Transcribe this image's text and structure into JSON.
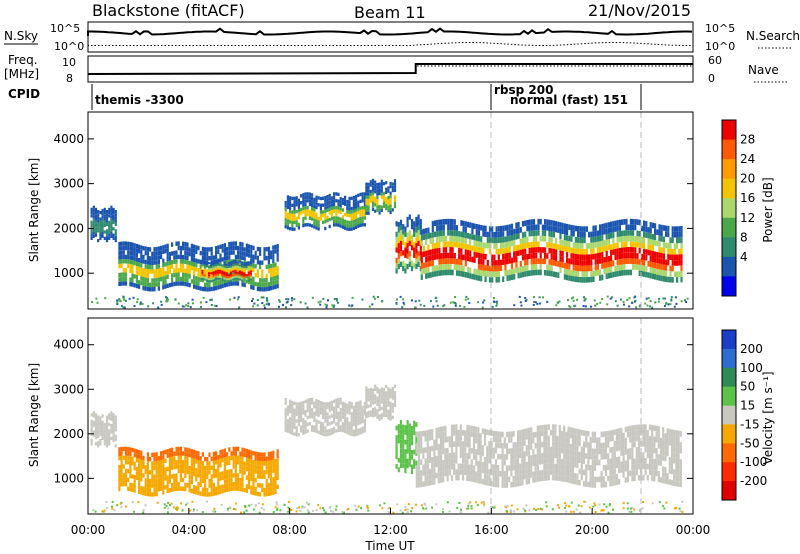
{
  "header": {
    "station": "Blackstone (fitACF)",
    "beam": "Beam 11",
    "date": "21/Nov/2015"
  },
  "summary_panels": {
    "nsky_label": "N.Sky",
    "nsearch_label": "N.Search",
    "nsky_ticks": [
      "10^5",
      "10^0"
    ],
    "nsearch_ticks": [
      "10^5",
      "10^0"
    ],
    "freq_label_top": "Freq.",
    "freq_label_unit": "[MHz]",
    "freq_ticks": [
      "10",
      "8"
    ],
    "nave_label": "Nave",
    "nave_ticks": [
      "60",
      "0"
    ],
    "cpid_label": "CPID",
    "cpid_segments": [
      {
        "label": "themis -3300",
        "start_hour": 0,
        "end_hour": 16
      },
      {
        "label": "rbsp 200",
        "start_hour": 16,
        "end_hour": 22
      },
      {
        "label": "normal (fast) 151",
        "start_hour": 16,
        "end_hour": 22
      }
    ],
    "freq_step_hour": 13.0,
    "freq_before_mhz": 8.3,
    "freq_after_mhz": 10.4
  },
  "chart_data": [
    {
      "type": "heatmap",
      "panel": "power",
      "ylabel": "Slant Range [km]",
      "xlabel": "",
      "xlim": [
        0,
        24
      ],
      "ylim": [
        200,
        4600
      ],
      "yticks": [
        1000,
        2000,
        3000,
        4000
      ],
      "colorbar": {
        "label": "Power [dB]",
        "ticks": [
          "28",
          "24",
          "20",
          "16",
          "12",
          "8",
          "4"
        ],
        "colors": [
          "#ee0000",
          "#ff5a00",
          "#ff9a00",
          "#f5c400",
          "#a8d86e",
          "#4aa84a",
          "#2f8a6e",
          "#1b55b0",
          "#0000ee"
        ]
      },
      "bands": [
        {
          "t0": 0.1,
          "t1": 1.1,
          "r0": 1700,
          "r1": 2500,
          "level": "weak"
        },
        {
          "t0": 1.2,
          "t1": 7.5,
          "r0": 600,
          "r1": 1700,
          "level": "moderate"
        },
        {
          "t0": 4.5,
          "t1": 6.5,
          "r0": 800,
          "r1": 1300,
          "level": "strong"
        },
        {
          "t0": 7.8,
          "t1": 11.0,
          "r0": 1950,
          "r1": 2800,
          "level": "moderate"
        },
        {
          "t0": 11.0,
          "t1": 12.2,
          "r0": 2300,
          "r1": 3100,
          "level": "moderate"
        },
        {
          "t0": 12.2,
          "t1": 13.2,
          "r0": 1000,
          "r1": 2300,
          "level": "strong"
        },
        {
          "t0": 13.2,
          "t1": 23.5,
          "r0": 800,
          "r1": 2200,
          "level": "strong"
        }
      ]
    },
    {
      "type": "heatmap",
      "panel": "velocity",
      "ylabel": "Slant Range [km]",
      "xlabel": "Time UT",
      "xlim": [
        0,
        24
      ],
      "ylim": [
        200,
        4600
      ],
      "xticks": [
        "00:00",
        "04:00",
        "08:00",
        "12:00",
        "16:00",
        "20:00",
        "00:00"
      ],
      "yticks": [
        1000,
        2000,
        3000,
        4000
      ],
      "colorbar": {
        "label": "Velocity [m s⁻¹]",
        "ticks": [
          "200",
          "100",
          "50",
          "15",
          "-15",
          "-50",
          "-100",
          "-200"
        ],
        "colors": [
          "#1a3ec8",
          "#2d6cd0",
          "#2e8b57",
          "#5cc24a",
          "#c8c8c0",
          "#f5a800",
          "#ff6a00",
          "#ff2a00",
          "#e00000"
        ]
      },
      "bands": [
        {
          "t0": 0.1,
          "t1": 1.1,
          "r0": 1700,
          "r1": 2500,
          "level": "gray"
        },
        {
          "t0": 1.2,
          "t1": 7.5,
          "r0": 600,
          "r1": 1700,
          "level": "orange"
        },
        {
          "t0": 7.8,
          "t1": 11.0,
          "r0": 1950,
          "r1": 2800,
          "level": "gray"
        },
        {
          "t0": 11.0,
          "t1": 12.2,
          "r0": 2300,
          "r1": 3100,
          "level": "gray"
        },
        {
          "t0": 12.2,
          "t1": 13.0,
          "r0": 1100,
          "r1": 2300,
          "level": "green"
        },
        {
          "t0": 13.0,
          "t1": 23.5,
          "r0": 800,
          "r1": 2200,
          "level": "gray"
        }
      ]
    }
  ]
}
